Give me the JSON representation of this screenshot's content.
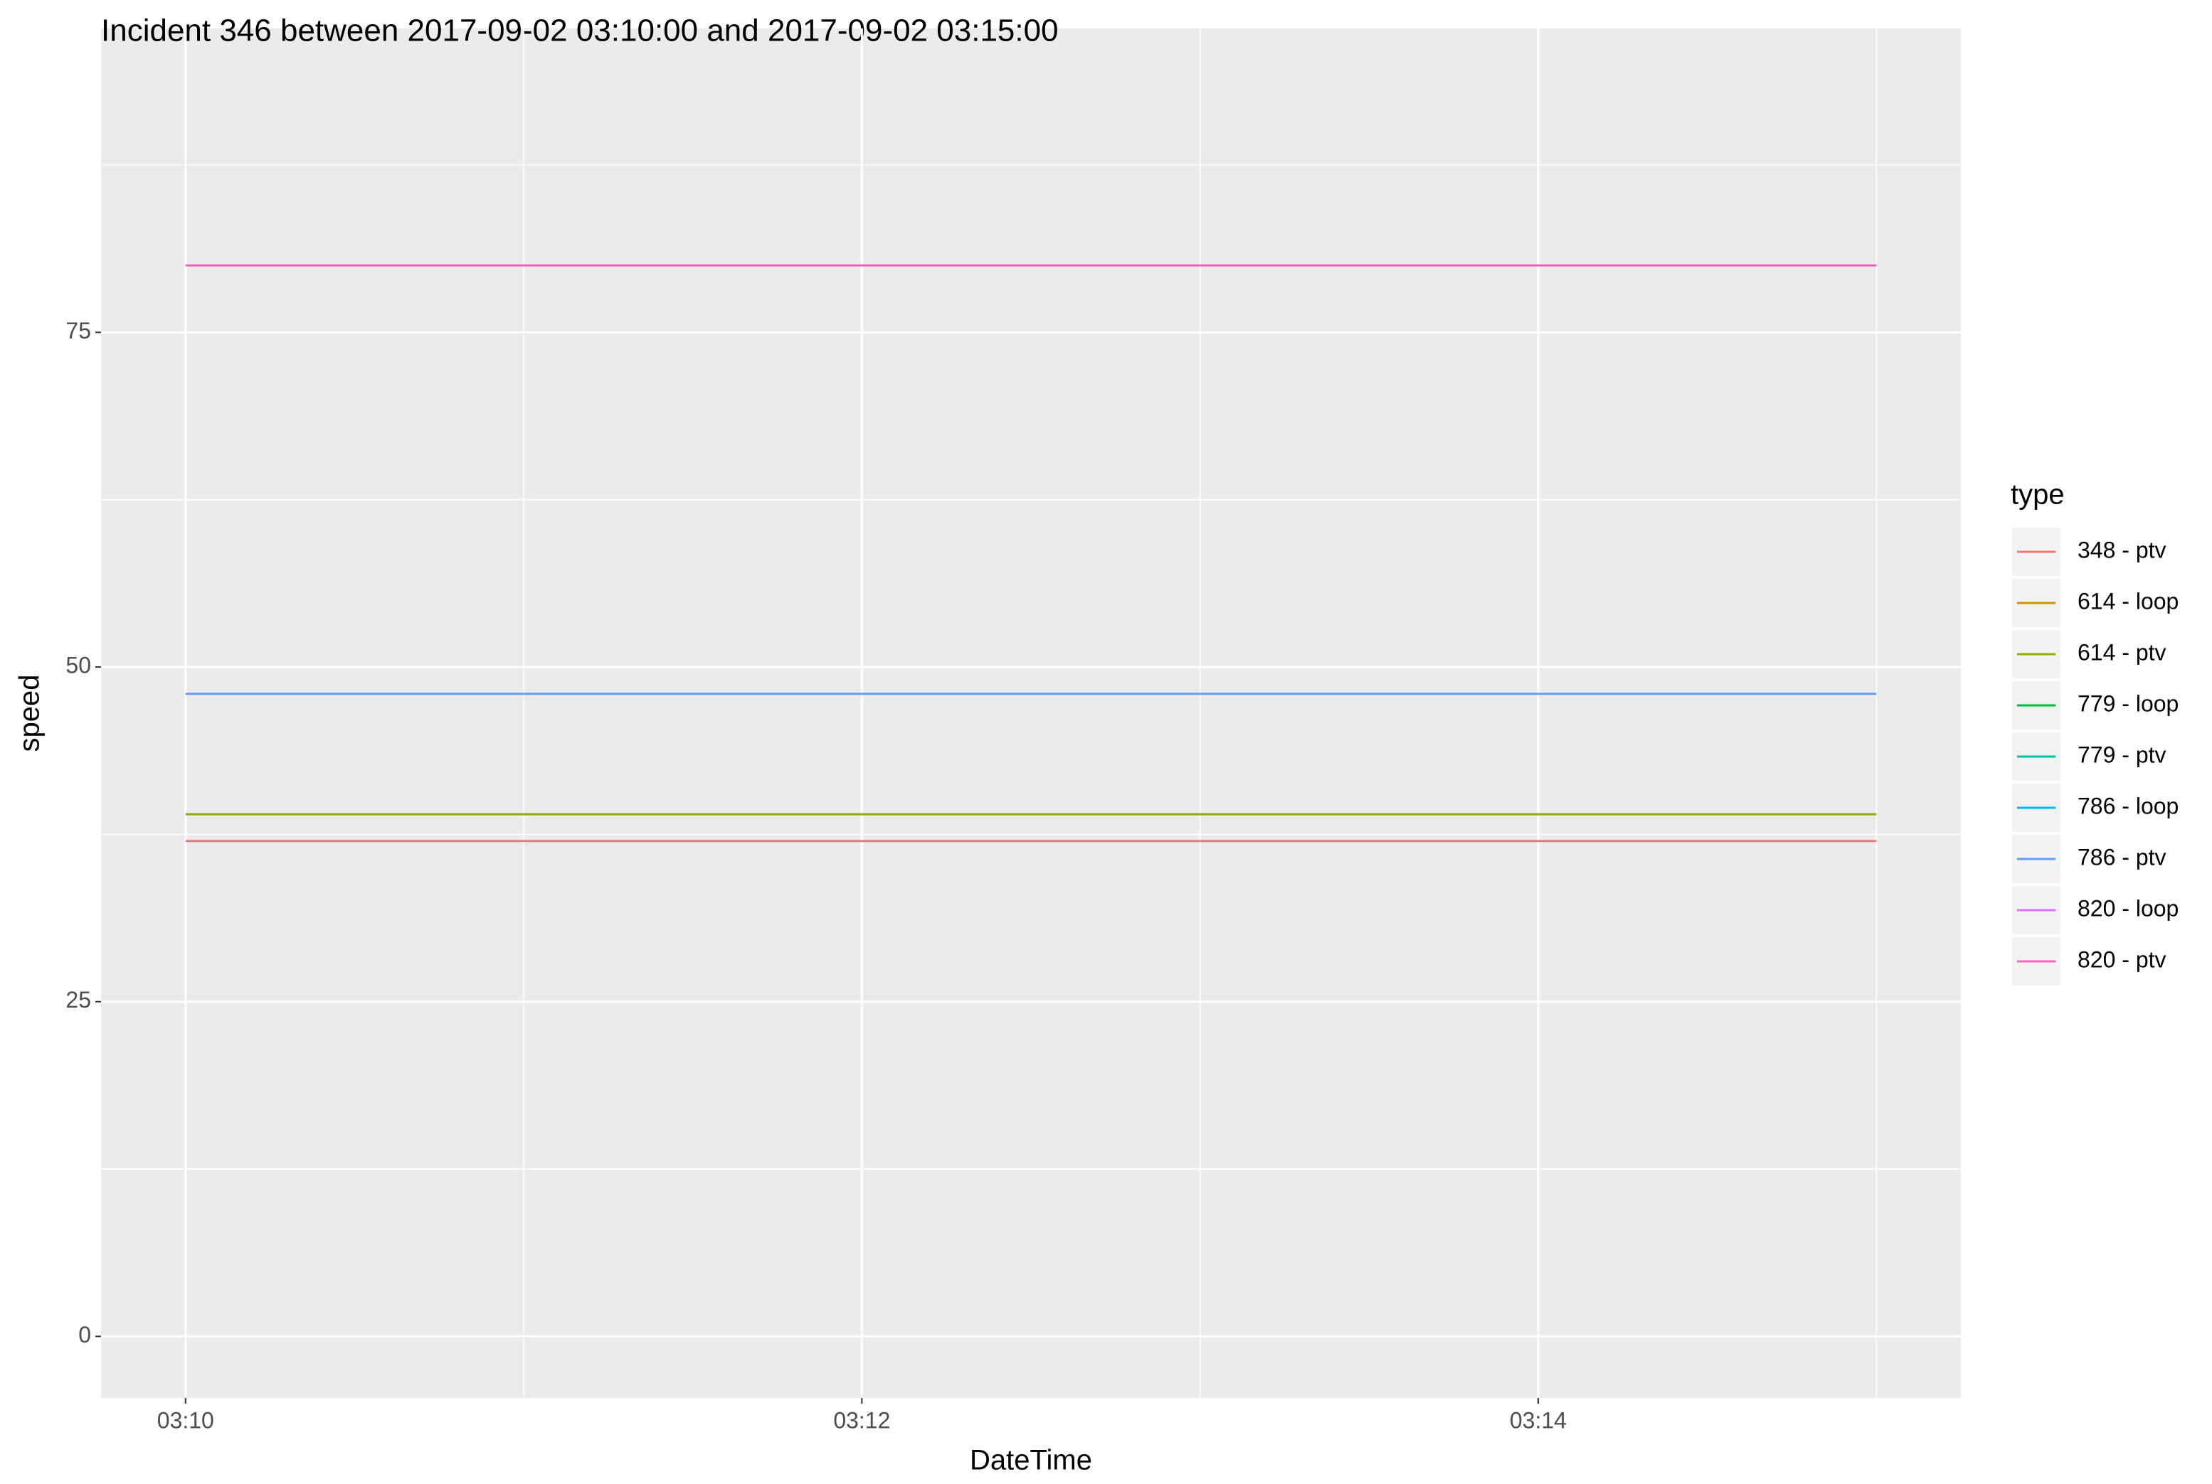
{
  "chart_data": {
    "type": "line",
    "title": "Incident 346 between 2017-09-02 03:10:00 and 2017-09-02 03:15:00",
    "x_label": "DateTime",
    "y_label": "speed",
    "legend_title": "type",
    "x": [
      "03:10",
      "03:15"
    ],
    "xlim": [
      "03:09:45",
      "03:15:15"
    ],
    "xticks": [
      "03:10",
      "03:12",
      "03:14"
    ],
    "ylim": [
      -4.6,
      97.7
    ],
    "yticks": [
      0,
      25,
      50,
      75
    ],
    "grid": true,
    "legend": "right",
    "series": [
      {
        "name": "348 - ptv",
        "color": "#F8766D",
        "values": [
          37,
          37
        ]
      },
      {
        "name": "614 - loop",
        "color": "#D39200",
        "values": [
          null,
          null
        ]
      },
      {
        "name": "614 - ptv",
        "color": "#93AA00",
        "values": [
          39,
          39
        ]
      },
      {
        "name": "779 - loop",
        "color": "#00BA38",
        "values": [
          null,
          null
        ]
      },
      {
        "name": "779 - ptv",
        "color": "#00C19F",
        "values": [
          null,
          null
        ]
      },
      {
        "name": "786 - loop",
        "color": "#00B9E3",
        "values": [
          null,
          null
        ]
      },
      {
        "name": "786 - ptv",
        "color": "#619CFF",
        "values": [
          48,
          48
        ]
      },
      {
        "name": "820 - loop",
        "color": "#DB72FB",
        "values": [
          null,
          null
        ]
      },
      {
        "name": "820 - ptv",
        "color": "#FF61C3",
        "values": [
          80,
          80
        ]
      }
    ]
  }
}
